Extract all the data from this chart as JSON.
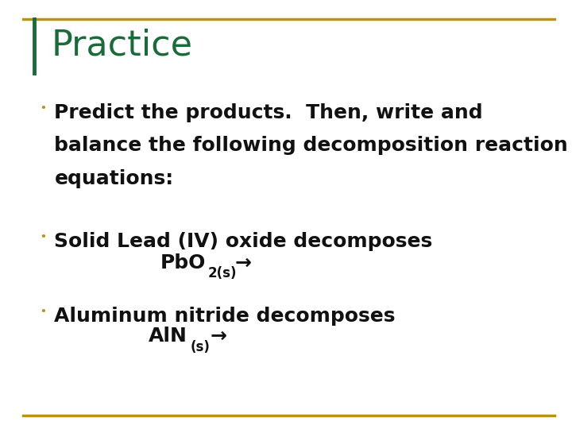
{
  "background_color": "#ffffff",
  "title": "Practice",
  "title_color": "#1a6b3a",
  "title_fontsize": 32,
  "title_fontweight": "normal",
  "border_color": "#b8960c",
  "border_linewidth": 2.5,
  "left_bar_color": "#1a6b3a",
  "text_color": "#111111",
  "bullet_color": "#b8960c",
  "bullet1_text1": "Predict the products.  Then, write and",
  "bullet1_text2": "balance the following decomposition reaction",
  "bullet1_text3": "equations:",
  "bullet2_text": "Solid Lead (IV) oxide decomposes",
  "bullet3_text": "Aluminum nitride decomposes",
  "text_fontsize": 18,
  "formula_fontsize": 18,
  "sub_fontsize": 12
}
